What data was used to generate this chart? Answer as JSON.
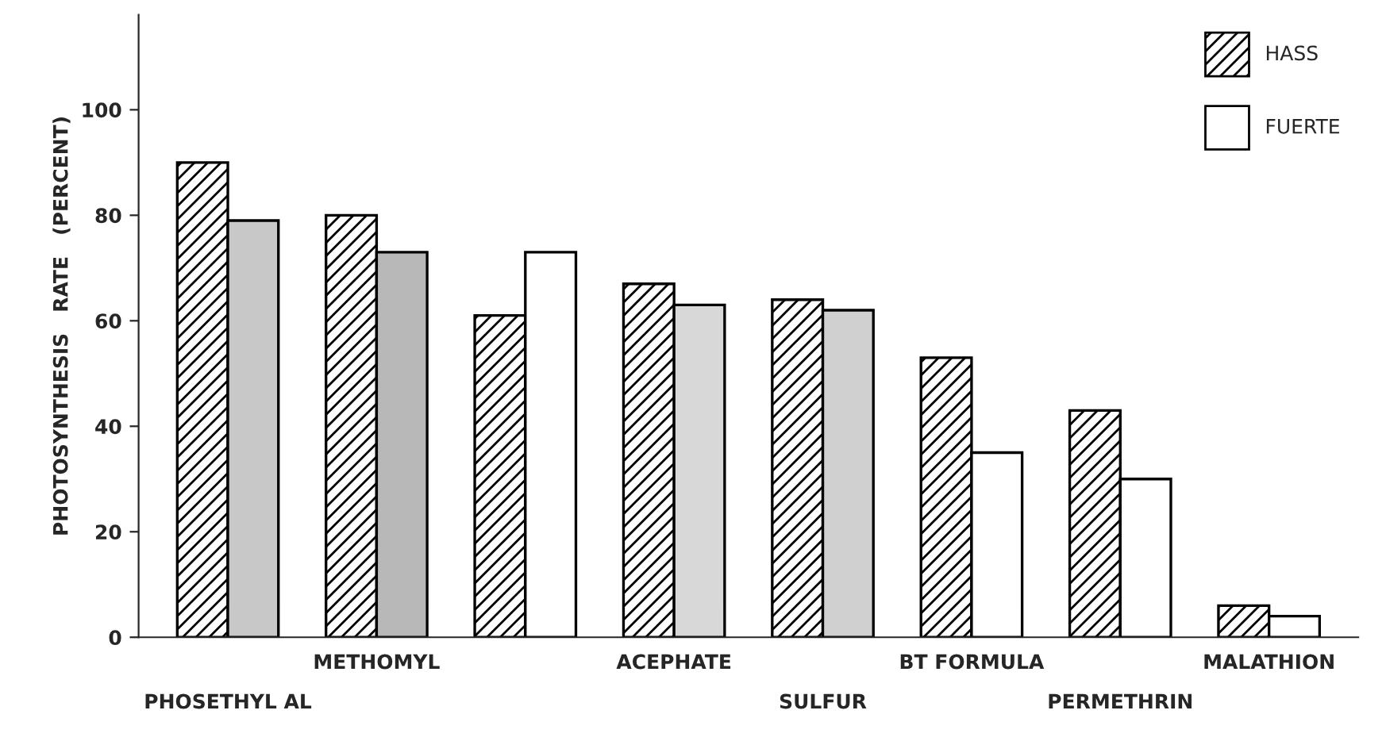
{
  "chart_data": {
    "type": "bar",
    "ylabel": "PHOTOSYNTHESIS   RATE   (PERCENT)",
    "categories": [
      "PHOSETHYL AL",
      "METHOMYL",
      null,
      "ACEPHATE",
      "SULFUR",
      "BT FORMULA",
      "PERMETHRIN",
      "MALATHION"
    ],
    "series": [
      {
        "name": "HASS",
        "color": "#000000",
        "values": [
          90,
          80,
          61,
          67,
          64,
          53,
          43,
          6
        ]
      },
      {
        "name": "FUERTE",
        "color": "#ffffff",
        "colors": [
          "#c8c8c8",
          "#b8b8b8",
          "#ffffff",
          "#d8d8d8",
          "#d0d0d0",
          "#ffffff",
          "#ffffff",
          "#ffffff"
        ],
        "values": [
          79,
          73,
          73,
          63,
          62,
          35,
          30,
          4
        ]
      }
    ],
    "ylim": [
      0,
      118
    ],
    "yticks": [
      0,
      20,
      40,
      60,
      80,
      100
    ],
    "legend": "top right",
    "grid": false
  }
}
